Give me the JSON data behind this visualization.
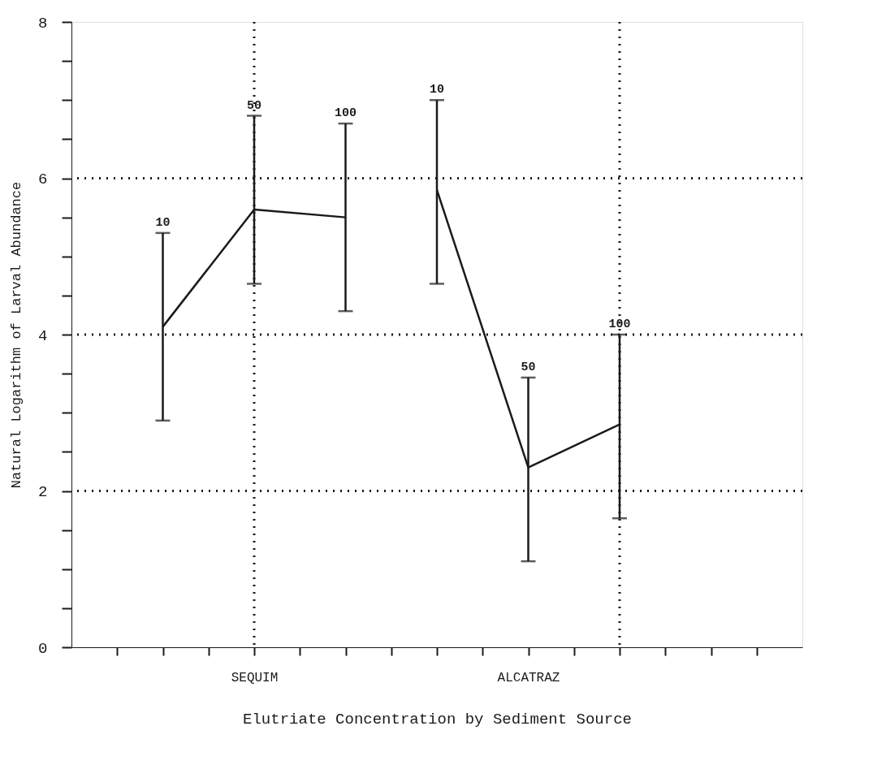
{
  "chart_data": {
    "type": "line",
    "xlabel": "Elutriate Concentration by Sediment Source",
    "ylabel": "Natural Logarithm of Larval Abundance",
    "categories": [
      null,
      null,
      null,
      "SEQUIM",
      null,
      null,
      null,
      null,
      null,
      "ALCATRAZ",
      null,
      null,
      null,
      null,
      null
    ],
    "ylim": [
      0,
      8
    ],
    "yticks": [
      0,
      {
        "value": 0.5,
        "label": null
      },
      {
        "value": 1,
        "label": null
      },
      {
        "value": 1.5,
        "label": null
      },
      2,
      {
        "value": 2.5,
        "label": null
      },
      {
        "value": 3,
        "label": null
      },
      {
        "value": 3.5,
        "label": null
      },
      4,
      {
        "value": 4.5,
        "label": null
      },
      {
        "value": 5,
        "label": null
      },
      {
        "value": 5.5,
        "label": null
      },
      6,
      {
        "value": 6.5,
        "label": null
      },
      {
        "value": 7,
        "label": null
      },
      {
        "value": 7.5,
        "label": null
      },
      8
    ],
    "series": [
      {
        "color": "#1a1a1a",
        "values": [
          null,
          4.1,
          null,
          5.6,
          null,
          5.5,
          null,
          null,
          null,
          null,
          null,
          null,
          null,
          null,
          null
        ],
        "errors": [
          null,
          [
            2.9,
            5.3
          ],
          null,
          [
            4.65,
            6.8
          ],
          null,
          [
            4.3,
            6.7
          ],
          null,
          null,
          null,
          null,
          null,
          null,
          null,
          null,
          null
        ]
      },
      {
        "color": "#1a1a1a",
        "values": [
          null,
          null,
          null,
          null,
          null,
          null,
          null,
          5.85,
          null,
          2.3,
          null,
          2.85,
          null,
          null,
          null
        ],
        "errors": [
          null,
          null,
          null,
          null,
          null,
          null,
          null,
          [
            4.65,
            7.0
          ],
          null,
          [
            1.1,
            3.45
          ],
          null,
          [
            1.65,
            4.0
          ],
          null,
          null,
          null
        ]
      }
    ],
    "ref_lines": [
      {
        "axis": "y",
        "value": 2,
        "line_style": "dotted"
      },
      {
        "axis": "y",
        "value": 4,
        "line_style": "dotted"
      },
      {
        "axis": "y",
        "value": 6,
        "line_style": "dotted"
      }
    ],
    "annotations": [
      {
        "text": "10",
        "y": 5.3
      },
      {
        "text": "50",
        "y": 6.8
      },
      {
        "text": "100",
        "y": 6.7
      },
      {
        "text": "10",
        "y": 7.0
      },
      {
        "text": "50",
        "y": 3.45
      },
      {
        "text": "100",
        "y": 4.0
      }
    ]
  }
}
